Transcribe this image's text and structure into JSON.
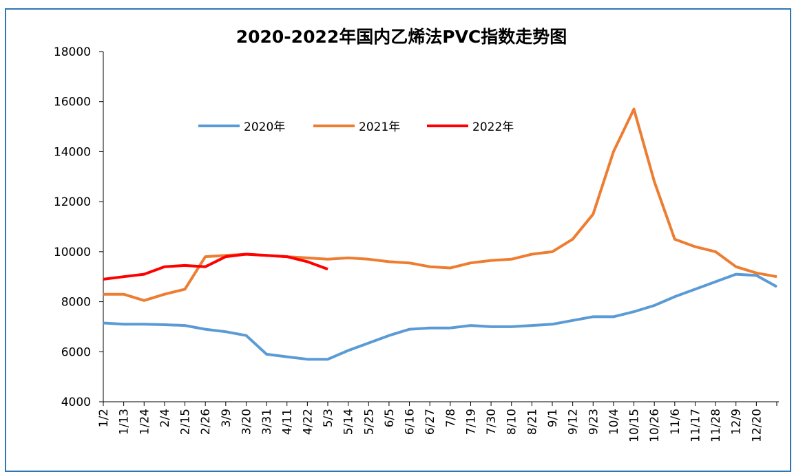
{
  "chart_data": {
    "type": "line",
    "title": "2020-2022年国内乙烯法PVC指数走势图",
    "categories": [
      "1/2",
      "1/13",
      "1/24",
      "2/4",
      "2/15",
      "2/26",
      "3/9",
      "3/20",
      "3/31",
      "4/11",
      "4/22",
      "5/3",
      "5/14",
      "5/25",
      "6/5",
      "6/16",
      "6/27",
      "7/8",
      "7/19",
      "7/30",
      "8/10",
      "8/21",
      "9/1",
      "9/12",
      "9/23",
      "10/4",
      "10/15",
      "10/26",
      "11/6",
      "11/17",
      "11/28",
      "12/9",
      "12/20",
      null
    ],
    "series": [
      {
        "name": "2020年",
        "color": "#5b9bd5",
        "values": [
          7150,
          7100,
          7100,
          7080,
          7050,
          6900,
          6800,
          6650,
          5900,
          5800,
          5700,
          5700,
          6050,
          6350,
          6650,
          6900,
          6950,
          6950,
          7050,
          7000,
          7000,
          7050,
          7100,
          7250,
          7400,
          7400,
          7600,
          7850,
          8200,
          8500,
          8800,
          9100,
          9050,
          8600
        ]
      },
      {
        "name": "2021年",
        "color": "#ed7d31",
        "values": [
          8300,
          8300,
          8050,
          8300,
          8500,
          9800,
          9850,
          9900,
          9850,
          9800,
          9750,
          9700,
          9750,
          9700,
          9600,
          9550,
          9400,
          9350,
          9550,
          9650,
          9700,
          9900,
          10000,
          10500,
          11500,
          14000,
          15700,
          12800,
          10500,
          10200,
          10000,
          9400,
          9150,
          9000
        ]
      },
      {
        "name": "2022年",
        "color": "#ff0000",
        "values": [
          8900,
          9000,
          9100,
          9400,
          9450,
          9400,
          9800,
          9900,
          9850,
          9800,
          9600,
          9300,
          null,
          null,
          null,
          null,
          null,
          null,
          null,
          null,
          null,
          null,
          null,
          null,
          null,
          null,
          null,
          null,
          null,
          null,
          null,
          null,
          null,
          null
        ]
      }
    ],
    "ylim": [
      4000,
      18000
    ],
    "yticks": [
      4000,
      6000,
      8000,
      10000,
      12000,
      14000,
      16000,
      18000
    ]
  }
}
